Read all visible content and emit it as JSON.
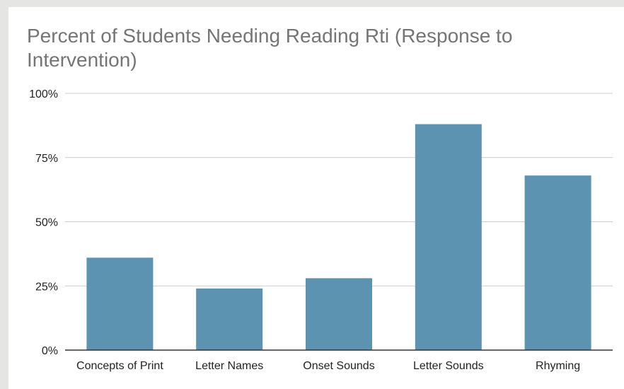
{
  "chart_data": {
    "type": "bar",
    "title": "Percent of Students Needing Reading Rti (Response to Intervention)",
    "xlabel": "",
    "ylabel": "",
    "categories": [
      "Concepts of Print",
      "Letter Names",
      "Onset Sounds",
      "Letter Sounds",
      "Rhyming"
    ],
    "values": [
      36,
      24,
      28,
      88,
      68
    ],
    "ylim": [
      0,
      100
    ],
    "yticks": [
      {
        "value": 0,
        "label": "0%"
      },
      {
        "value": 25,
        "label": "25%"
      },
      {
        "value": 50,
        "label": "50%"
      },
      {
        "value": 75,
        "label": "75%"
      },
      {
        "value": 100,
        "label": "100%"
      }
    ],
    "grid": true,
    "legend": "none",
    "bar_color": "#5b93b0",
    "gridline_color": "#cccccc",
    "axis_color": "#333333"
  }
}
